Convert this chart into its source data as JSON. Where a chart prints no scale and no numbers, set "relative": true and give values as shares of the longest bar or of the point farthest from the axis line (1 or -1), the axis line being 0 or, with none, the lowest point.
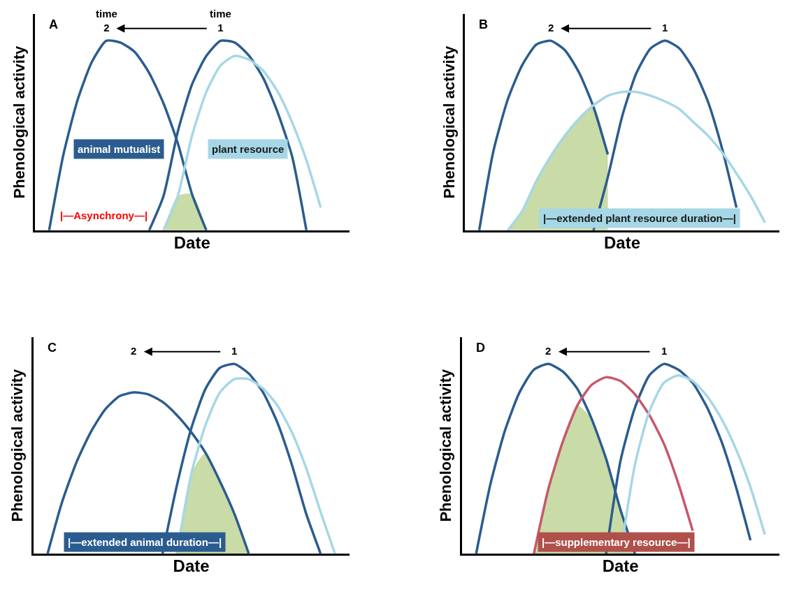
{
  "chart_data": [
    {
      "type": "line",
      "title": "A",
      "xlabel": "Date",
      "ylabel": "Phenological activity",
      "relative": true,
      "legend": false,
      "tick_labels": false,
      "categories": [
        null,
        null,
        null,
        null,
        null,
        null,
        null,
        null,
        null,
        null,
        null,
        null,
        null,
        null,
        null,
        null,
        null,
        null,
        null,
        null,
        null
      ],
      "series": [
        {
          "type": "area",
          "color": "#c9dba6",
          "values": [
            null,
            null,
            null,
            null,
            null,
            null,
            null,
            null,
            0,
            0.18,
            0.19,
            0,
            null,
            null,
            null,
            null,
            null,
            null,
            null,
            null,
            null
          ]
        },
        {
          "name": "animal mutualist",
          "color": "#2b5c8f",
          "values": [
            0,
            0.4,
            0.69,
            0.89,
            1.0,
            0.99,
            0.94,
            0.83,
            0.67,
            0.46,
            0.19,
            0,
            null,
            null,
            null,
            null,
            null,
            null,
            null,
            null,
            null
          ]
        },
        {
          "color": "#2b5c8f",
          "values": [
            null,
            null,
            null,
            null,
            null,
            null,
            null,
            0,
            0.18,
            0.52,
            0.77,
            0.92,
            1.0,
            0.99,
            0.92,
            0.8,
            0.62,
            0.39,
            0,
            null,
            null
          ]
        },
        {
          "name": "plant resource",
          "color": "#a6d7e6",
          "values": [
            null,
            null,
            null,
            null,
            null,
            null,
            null,
            null,
            0,
            0.18,
            0.5,
            0.73,
            0.87,
            0.92,
            0.9,
            0.84,
            0.73,
            0.57,
            0.37,
            0.12,
            null
          ]
        }
      ],
      "annotations": [
        "time\n2",
        "time\n1",
        "|—Asynchrony—|"
      ]
    },
    {
      "type": "line",
      "title": "B",
      "xlabel": "Date",
      "ylabel": "Phenological activity",
      "relative": true,
      "legend": false,
      "tick_labels": false,
      "categories": [
        null,
        null,
        null,
        null,
        null,
        null,
        null,
        null,
        null,
        null,
        null,
        null,
        null,
        null,
        null,
        null,
        null,
        null,
        null,
        null,
        null
      ],
      "series": [
        {
          "type": "area",
          "color": "#c9dba6",
          "values": [
            null,
            null,
            0,
            0.1,
            0.26,
            0.39,
            0.5,
            0.59,
            0.65,
            0.4,
            null,
            null,
            null,
            null,
            null,
            null,
            null,
            null,
            null,
            null,
            null
          ]
        },
        {
          "color": "#2b5c8f",
          "values": [
            0,
            0.42,
            0.69,
            0.87,
            0.98,
            1.0,
            0.95,
            0.83,
            0.65,
            0.4,
            null,
            null,
            null,
            null,
            null,
            null,
            null,
            null,
            null,
            null,
            null
          ]
        },
        {
          "color": "#2b5c8f",
          "values": [
            null,
            null,
            null,
            null,
            null,
            null,
            null,
            null,
            0,
            0.28,
            0.6,
            0.83,
            0.96,
            1.0,
            0.96,
            0.85,
            0.68,
            0.43,
            0.12,
            null,
            null
          ]
        },
        {
          "color": "#a6d7e6",
          "values": [
            null,
            null,
            0,
            0.1,
            0.26,
            0.39,
            0.5,
            0.59,
            0.66,
            0.71,
            0.73,
            0.73,
            0.71,
            0.68,
            0.64,
            0.57,
            0.5,
            0.41,
            0.3,
            0.18,
            0.04
          ]
        }
      ],
      "annotations": [
        "2",
        "1",
        "|—extended plant resource duration—|"
      ]
    },
    {
      "type": "line",
      "title": "C",
      "xlabel": "Date",
      "ylabel": "Phenological activity",
      "relative": true,
      "legend": false,
      "tick_labels": false,
      "categories": [
        null,
        null,
        null,
        null,
        null,
        null,
        null,
        null,
        null,
        null,
        null,
        null,
        null,
        null,
        null,
        null,
        null,
        null,
        null,
        null,
        null
      ],
      "series": [
        {
          "type": "area",
          "color": "#c9dba6",
          "values": [
            null,
            null,
            null,
            null,
            null,
            null,
            null,
            null,
            null,
            0,
            0.42,
            0.53,
            0.38,
            0.21,
            0,
            null,
            null,
            null,
            null,
            null,
            null
          ]
        },
        {
          "color": "#2b5c8f",
          "values": [
            0,
            0.27,
            0.48,
            0.64,
            0.76,
            0.83,
            0.85,
            0.84,
            0.8,
            0.73,
            0.64,
            0.53,
            0.38,
            0.21,
            0,
            null,
            null,
            null,
            null,
            null,
            null
          ]
        },
        {
          "color": "#2b5c8f",
          "values": [
            null,
            null,
            null,
            null,
            null,
            null,
            null,
            null,
            0,
            0.36,
            0.66,
            0.87,
            0.98,
            1.0,
            0.95,
            0.85,
            0.69,
            0.47,
            0.21,
            0,
            null
          ]
        },
        {
          "color": "#a6d7e6",
          "values": [
            null,
            null,
            null,
            null,
            null,
            null,
            null,
            null,
            null,
            0,
            0.42,
            0.68,
            0.85,
            0.92,
            0.92,
            0.87,
            0.78,
            0.64,
            0.45,
            0.22,
            0
          ]
        }
      ],
      "annotations": [
        "2",
        "1",
        "|—extended animal duration—|"
      ]
    },
    {
      "type": "line",
      "title": "D",
      "xlabel": "Date",
      "ylabel": "Phenological activity",
      "relative": true,
      "legend": false,
      "tick_labels": false,
      "categories": [
        null,
        null,
        null,
        null,
        null,
        null,
        null,
        null,
        null,
        null,
        null,
        null,
        null,
        null,
        null,
        null,
        null,
        null,
        null,
        null,
        null
      ],
      "series": [
        {
          "type": "area",
          "color": "#c9dba6",
          "values": [
            null,
            null,
            null,
            null,
            0,
            0.34,
            0.59,
            0.78,
            0.71,
            0.5,
            0.23,
            0,
            null,
            null,
            null,
            null,
            null,
            null,
            null,
            null,
            null
          ]
        },
        {
          "color": "#2b5c8f",
          "values": [
            0,
            0.37,
            0.65,
            0.85,
            0.97,
            1.0,
            0.96,
            0.87,
            0.71,
            0.5,
            0.23,
            0,
            null,
            null,
            null,
            null,
            null,
            null,
            null,
            null,
            null
          ]
        },
        {
          "color": "#2b5c8f",
          "values": [
            null,
            null,
            null,
            null,
            null,
            null,
            null,
            null,
            null,
            0,
            0.49,
            0.77,
            0.94,
            1.0,
            0.97,
            0.9,
            0.77,
            0.59,
            0.35,
            0.07,
            null
          ]
        },
        {
          "color": "#c8586a",
          "values": [
            null,
            null,
            null,
            null,
            0,
            0.34,
            0.59,
            0.78,
            0.89,
            0.93,
            0.91,
            0.84,
            0.73,
            0.58,
            0.37,
            0.12,
            null,
            null,
            null,
            null,
            null
          ]
        },
        {
          "color": "#a6d7e6",
          "values": [
            null,
            null,
            null,
            null,
            null,
            null,
            null,
            null,
            null,
            null,
            0,
            0.47,
            0.75,
            0.9,
            0.94,
            0.91,
            0.83,
            0.71,
            0.55,
            0.35,
            0.1
          ]
        }
      ],
      "annotations": [
        "2",
        "1",
        "|—supplementary resource—|"
      ]
    }
  ]
}
